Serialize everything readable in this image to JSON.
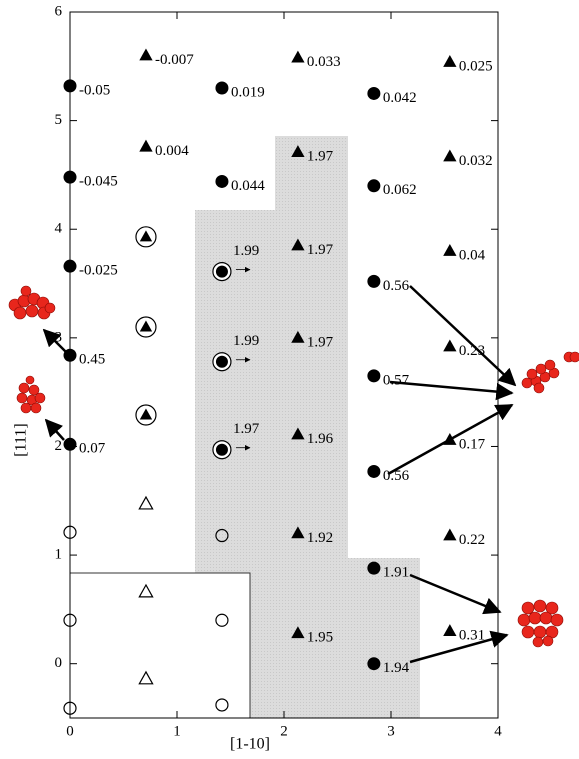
{
  "chart_data": {
    "type": "scatter",
    "xlabel": "[1-10]",
    "ylabel": "[111]",
    "xlim": [
      0,
      4
    ],
    "ylim": [
      -0.5,
      6
    ],
    "xticks": [
      0,
      1,
      2,
      3,
      4
    ],
    "yticks": [
      0,
      1,
      2,
      3,
      4,
      5,
      6
    ],
    "series": [
      {
        "marker": "circle-filled",
        "color": "#000000",
        "x": [
          0,
          0,
          0,
          0,
          0,
          1.42,
          1.42,
          2.84,
          2.84,
          2.84,
          2.84,
          2.84,
          2.84,
          2.84
        ],
        "values": [
          5.32,
          4.48,
          3.66,
          2.84,
          2.02,
          5.3,
          4.44,
          5.25,
          4.4,
          3.52,
          2.65,
          1.77,
          0.88,
          0
        ],
        "labels": [
          -0.05,
          -0.045,
          -0.025,
          0.45,
          0.07,
          0.019,
          0.044,
          0.042,
          0.062,
          0.56,
          0.57,
          0.56,
          1.91,
          1.94
        ]
      },
      {
        "marker": "triangle-filled",
        "color": "#000000",
        "x": [
          0.71,
          0.71,
          2.13,
          2.13,
          2.13,
          2.13,
          2.13,
          2.13,
          2.13,
          3.55,
          3.55,
          3.55,
          3.55,
          3.55,
          3.55,
          3.55
        ],
        "values": [
          5.6,
          4.76,
          5.58,
          4.71,
          3.85,
          3.0,
          2.11,
          1.2,
          0.28,
          5.54,
          4.67,
          3.8,
          2.92,
          2.06,
          1.18,
          0.3
        ],
        "labels": [
          -0.007,
          0.004,
          0.033,
          1.97,
          1.97,
          1.97,
          1.96,
          1.92,
          1.95,
          0.025,
          0.032,
          0.04,
          0.23,
          0.17,
          0.22,
          0.31
        ]
      },
      {
        "marker": "circle-circled",
        "color": "#000000",
        "x": [
          1.42,
          1.42,
          1.42
        ],
        "values": [
          3.61,
          2.78,
          1.97
        ],
        "labels": [
          1.99,
          1.99,
          1.97
        ]
      },
      {
        "marker": "triangle-circled",
        "color": "#000000",
        "x": [
          0.71,
          0.71,
          0.71
        ],
        "values": [
          3.93,
          3.1,
          2.29
        ]
      },
      {
        "marker": "circle-open",
        "color": "#000000",
        "x": [
          0,
          0,
          0,
          1.42,
          1.42,
          1.42
        ],
        "values": [
          1.21,
          0.4,
          -0.41,
          1.18,
          0.4,
          -0.38
        ]
      },
      {
        "marker": "triangle-open",
        "color": "#000000",
        "x": [
          0.71,
          0.71,
          0.71
        ],
        "values": [
          1.47,
          0.66,
          -0.14
        ]
      }
    ]
  }
}
